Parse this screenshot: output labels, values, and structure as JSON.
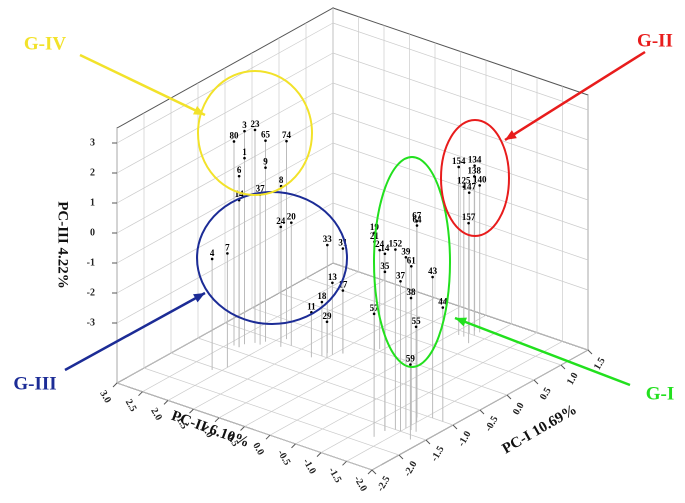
{
  "chart_data": {
    "type": "scatter3d",
    "x_label": "PC-I 10.69%",
    "y_label": "PC-II 6.10%",
    "z_label": "PC-III 4.22%",
    "xlim": [
      -2.5,
      1.5
    ],
    "ylim": [
      -2,
      3
    ],
    "zlim": [
      -5,
      3.5
    ],
    "xticks": [
      -2.5,
      {
        "value": -2,
        "label": "-2.0"
      },
      -1.5,
      {
        "value": -1,
        "label": "-1.0"
      },
      -0.5,
      {
        "value": 0,
        "label": "0.0"
      },
      0.5,
      {
        "value": 1,
        "label": "1.0"
      },
      1.5
    ],
    "yticks": [
      {
        "value": 3,
        "label": "3.0"
      },
      2.5,
      {
        "value": 2,
        "label": "2.0"
      },
      1.5,
      {
        "value": 1,
        "label": "1.0"
      },
      0.5,
      {
        "value": 0,
        "label": "0.0"
      },
      -0.5,
      {
        "value": -1,
        "label": "-1.0"
      },
      -1.5,
      {
        "value": -2,
        "label": "-2.0"
      }
    ],
    "zticks": [
      3,
      2,
      1,
      0,
      -1,
      -2,
      -3
    ],
    "grid": true,
    "point_color": "#000000",
    "drop_line_color": "#bbbbbb",
    "groups": [
      {
        "name": "G-I",
        "color": "#22e01e"
      },
      {
        "name": "G-II",
        "color": "#e81c1c"
      },
      {
        "name": "G-III",
        "color": "#1c2c96"
      },
      {
        "name": "G-IV",
        "color": "#f2e22a"
      }
    ],
    "points": [
      {
        "label": "3",
        "x": -0.8,
        "y": 2.3,
        "z": 2.1
      },
      {
        "label": "23",
        "x": -0.7,
        "y": 2.2,
        "z": 2.1
      },
      {
        "label": "80",
        "x": -0.9,
        "y": 2.4,
        "z": 1.8
      },
      {
        "label": "65",
        "x": -0.6,
        "y": 2.1,
        "z": 1.7
      },
      {
        "label": "74",
        "x": -0.4,
        "y": 1.9,
        "z": 1.6
      },
      {
        "label": "1",
        "x": -0.8,
        "y": 2.3,
        "z": 1.2
      },
      {
        "label": "9",
        "x": -0.6,
        "y": 2.1,
        "z": 0.8
      },
      {
        "label": "6",
        "x": -0.9,
        "y": 2.3,
        "z": 0.7
      },
      {
        "label": "14",
        "x": -0.9,
        "y": 2.3,
        "z": -0.1
      },
      {
        "label": "37",
        "x": -0.7,
        "y": 2.1,
        "z": 0.0
      },
      {
        "label": "8",
        "x": -0.5,
        "y": 1.9,
        "z": 0.2
      },
      {
        "label": "24",
        "x": -0.6,
        "y": 1.8,
        "z": -1.0
      },
      {
        "label": "20",
        "x": -0.5,
        "y": 1.7,
        "z": -0.9
      },
      {
        "label": "4",
        "x": -1.56,
        "y": 2.13,
        "z": -1.3
      },
      {
        "label": "7",
        "x": -1.4,
        "y": 2.0,
        "z": -1.2
      },
      {
        "label": "33",
        "x": -0.4,
        "y": 1.1,
        "z": -1.4
      },
      {
        "label": "31",
        "x": -0.3,
        "y": 0.9,
        "z": -1.5
      },
      {
        "label": "19",
        "x": 0.0,
        "y": 0.6,
        "z": -1.1
      },
      {
        "label": "21",
        "x": 0.0,
        "y": 0.6,
        "z": -1.4
      },
      {
        "label": "24",
        "x": 0.05,
        "y": 0.55,
        "z": -1.7
      },
      {
        "label": "13",
        "x": -0.4,
        "y": 1.0,
        "z": -2.6
      },
      {
        "label": "17",
        "x": -0.3,
        "y": 0.9,
        "z": -2.9
      },
      {
        "label": "18",
        "x": -0.5,
        "y": 1.1,
        "z": -3.2
      },
      {
        "label": "11",
        "x": -0.6,
        "y": 1.2,
        "z": -3.5
      },
      {
        "label": "29",
        "x": -0.5,
        "y": 1.0,
        "z": -3.8
      },
      {
        "label": "67",
        "x": -1.2,
        "y": -1.5,
        "z": 1.7
      },
      {
        "label": "64",
        "x": -1.1,
        "y": -1.4,
        "z": 1.4
      },
      {
        "label": "152",
        "x": -1.5,
        "y": -1.4,
        "z": 1.0
      },
      {
        "label": "14",
        "x": -1.6,
        "y": -1.3,
        "z": 0.9
      },
      {
        "label": "39",
        "x": -1.4,
        "y": -1.5,
        "z": 0.7
      },
      {
        "label": "61",
        "x": -1.3,
        "y": -1.5,
        "z": 0.3
      },
      {
        "label": "35",
        "x": -1.6,
        "y": -1.3,
        "z": 0.3
      },
      {
        "label": "37",
        "x": -1.5,
        "y": -1.5,
        "z": 0.0
      },
      {
        "label": "38",
        "x": -1.4,
        "y": -1.6,
        "z": -0.6
      },
      {
        "label": "43",
        "x": -1.0,
        "y": -1.6,
        "z": -0.3
      },
      {
        "label": "44",
        "x": -1.0,
        "y": -1.8,
        "z": -1.2
      },
      {
        "label": "55",
        "x": -1.4,
        "y": -1.7,
        "z": -1.5
      },
      {
        "label": "57",
        "x": -1.8,
        "y": -1.3,
        "z": -0.9
      },
      {
        "label": "59",
        "x": -1.6,
        "y": -1.8,
        "z": -2.5
      },
      {
        "label": "134",
        "x": 1.1,
        "y": -0.2,
        "z": 0.5
      },
      {
        "label": "154",
        "x": 0.9,
        "y": -0.1,
        "z": 0.6
      },
      {
        "label": "138",
        "x": 1.0,
        "y": -0.3,
        "z": 0.3
      },
      {
        "label": "125",
        "x": 0.9,
        "y": -0.2,
        "z": 0.0
      },
      {
        "label": "140",
        "x": 1.1,
        "y": -0.3,
        "z": -0.1
      },
      {
        "label": "147",
        "x": 1.0,
        "y": -0.2,
        "z": -0.3
      },
      {
        "label": "157",
        "x": 0.8,
        "y": -0.4,
        "z": -1.0
      }
    ]
  }
}
